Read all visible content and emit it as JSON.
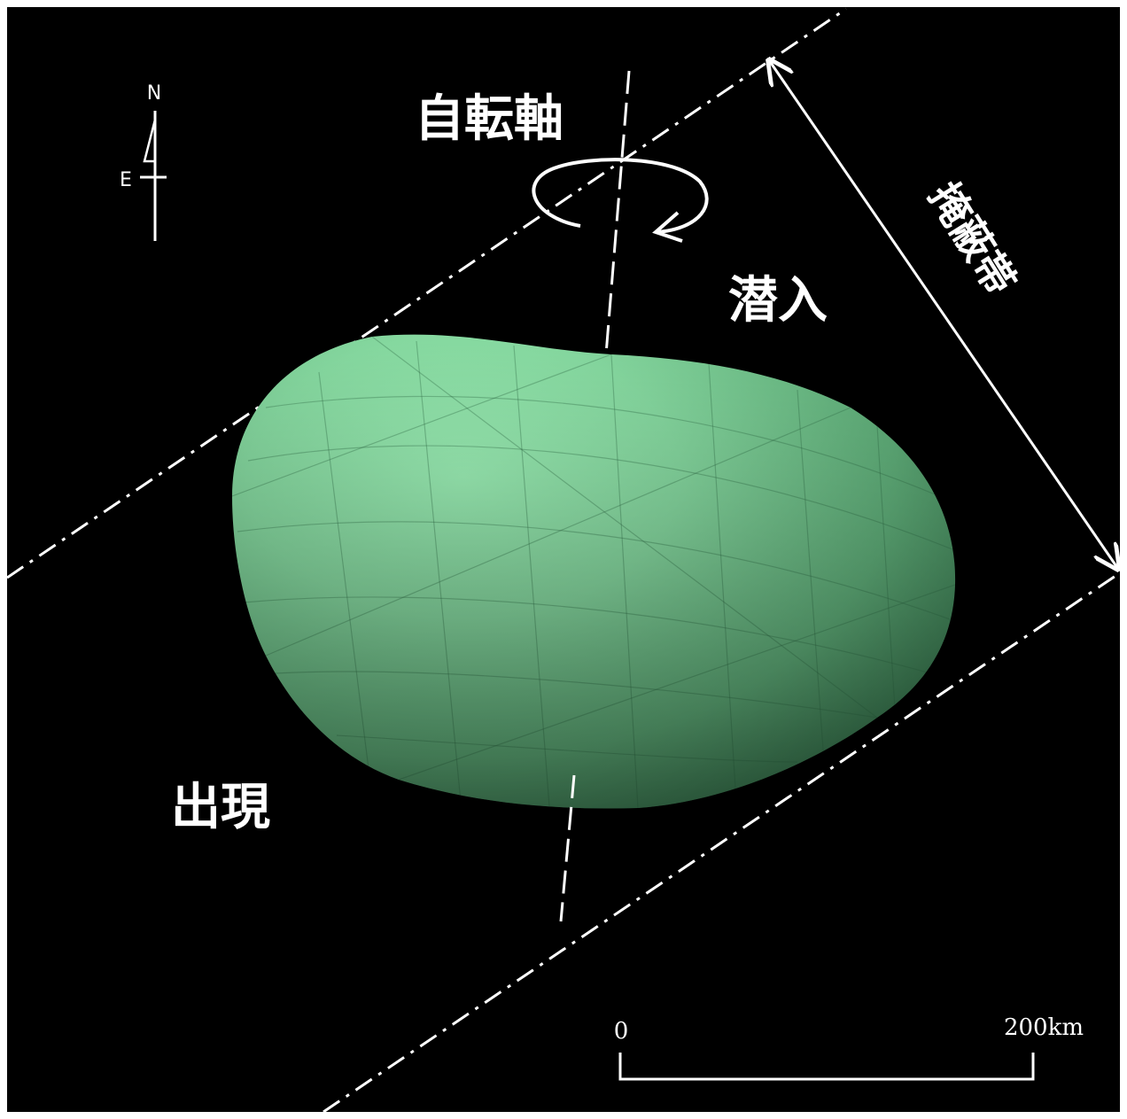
{
  "labels": {
    "rotation_axis": "自転軸",
    "occultation_band": "掩蔽帯",
    "disappearance": "潜入",
    "reappearance": "出現"
  },
  "compass": {
    "north": "N",
    "east": "E"
  },
  "scale_bar": {
    "start": "0",
    "end": "200km"
  },
  "colors": {
    "background": "#000000",
    "asteroid": "#86d9a0",
    "lines": "#ffffff"
  },
  "icons": {
    "rotation": "rotation-arrow-icon",
    "compass": "compass-icon"
  }
}
